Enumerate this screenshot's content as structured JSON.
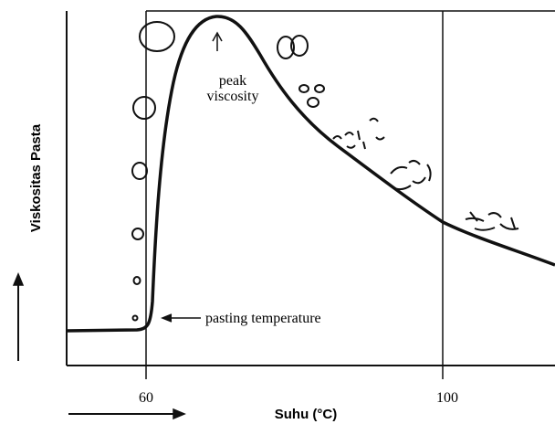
{
  "y_axis_label": "Viskositas Pasta",
  "x_axis_label": "Suhu (°C)",
  "x_tick_labels": [
    "60",
    "100"
  ],
  "annotations": {
    "peak": "peak\nviscosity",
    "pasting": "pasting temperature"
  }
}
